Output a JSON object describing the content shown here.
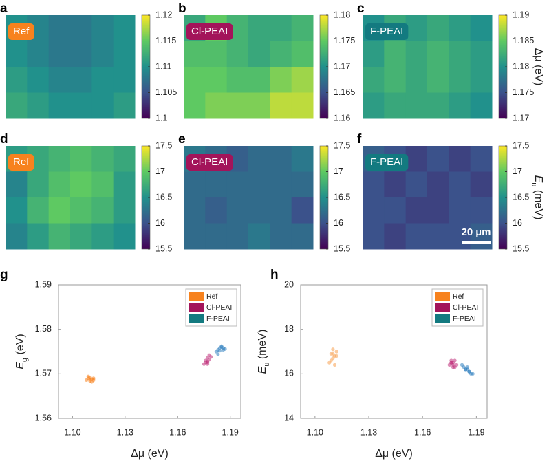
{
  "chart_data": [
    {
      "type": "heatmap",
      "panel": "a",
      "label": "Ref",
      "label_color": "#f7821e",
      "zlim": [
        1.1,
        1.12
      ],
      "zticks": [
        1.1,
        1.105,
        1.11,
        1.115,
        1.12
      ],
      "values": [
        [
          1.11,
          1.109,
          1.108,
          1.108,
          1.109,
          1.11
        ],
        [
          1.11,
          1.109,
          1.108,
          1.108,
          1.109,
          1.11
        ],
        [
          1.111,
          1.11,
          1.109,
          1.109,
          1.11,
          1.11
        ],
        [
          1.112,
          1.111,
          1.11,
          1.11,
          1.11,
          1.111
        ]
      ]
    },
    {
      "type": "heatmap",
      "panel": "b",
      "label": "Cl-PEAI",
      "label_color": "#a3145a",
      "zlim": [
        1.16,
        1.18
      ],
      "zticks": [
        1.16,
        1.165,
        1.17,
        1.175,
        1.18
      ],
      "values": [
        [
          1.172,
          1.175,
          1.173,
          1.172,
          1.172,
          1.173
        ],
        [
          1.174,
          1.174,
          1.173,
          1.172,
          1.173,
          1.174
        ],
        [
          1.175,
          1.175,
          1.174,
          1.174,
          1.176,
          1.177
        ],
        [
          1.175,
          1.176,
          1.176,
          1.176,
          1.178,
          1.178
        ]
      ]
    },
    {
      "type": "heatmap",
      "panel": "c",
      "label": "F-PEAI",
      "label_color": "#137a80",
      "zlim": [
        1.17,
        1.19
      ],
      "zticks": [
        1.17,
        1.175,
        1.18,
        1.185,
        1.19
      ],
      "colorbar_label": "Δμ (eV)",
      "values": [
        [
          1.18,
          1.182,
          1.181,
          1.182,
          1.181,
          1.18
        ],
        [
          1.181,
          1.183,
          1.182,
          1.183,
          1.182,
          1.181
        ],
        [
          1.182,
          1.183,
          1.182,
          1.183,
          1.182,
          1.181
        ],
        [
          1.181,
          1.182,
          1.182,
          1.182,
          1.181,
          1.18
        ]
      ]
    },
    {
      "type": "heatmap",
      "panel": "d",
      "label": "Ref",
      "label_color": "#f7821e",
      "zlim": [
        15.5,
        17.5
      ],
      "zticks": [
        15.5,
        16,
        16.5,
        17,
        17.5
      ],
      "values": [
        [
          16.6,
          16.7,
          16.8,
          16.9,
          16.8,
          16.7
        ],
        [
          16.4,
          16.7,
          16.9,
          17.0,
          16.9,
          16.6
        ],
        [
          16.5,
          16.8,
          17.0,
          16.9,
          16.8,
          16.6
        ],
        [
          16.4,
          16.6,
          16.8,
          16.7,
          16.6,
          16.5
        ]
      ]
    },
    {
      "type": "heatmap",
      "panel": "e",
      "label": "Cl-PEAI",
      "label_color": "#a3145a",
      "zlim": [
        15.5,
        17.5
      ],
      "zticks": [
        15.5,
        16,
        16.5,
        17,
        17.5
      ],
      "values": [
        [
          16.3,
          16.2,
          16.1,
          16.2,
          16.2,
          16.3
        ],
        [
          16.2,
          16.2,
          16.2,
          16.2,
          16.2,
          16.2
        ],
        [
          16.2,
          16.1,
          16.2,
          16.2,
          16.2,
          16.0
        ],
        [
          16.2,
          16.2,
          16.2,
          16.3,
          16.2,
          16.2
        ]
      ]
    },
    {
      "type": "heatmap",
      "panel": "f",
      "label": "F-PEAI",
      "label_color": "#137a80",
      "zlim": [
        15.5,
        17.5
      ],
      "zticks": [
        15.5,
        16,
        16.5,
        17,
        17.5
      ],
      "colorbar_label": {
        "main": "E",
        "sub": "u",
        "rest": " (meV)"
      },
      "scale_bar": "20 µm",
      "values": [
        [
          16.1,
          16.0,
          15.9,
          16.0,
          15.9,
          16.0
        ],
        [
          16.0,
          15.9,
          16.0,
          15.9,
          16.0,
          15.9
        ],
        [
          16.0,
          16.0,
          15.9,
          15.9,
          16.0,
          16.0
        ],
        [
          16.0,
          15.9,
          16.0,
          16.0,
          16.0,
          16.1
        ]
      ]
    },
    {
      "type": "scatter",
      "panel": "g",
      "xlabel": "Δμ (eV)",
      "ylabel": {
        "main": "E",
        "sub": "g",
        "rest": " (eV)"
      },
      "xlim": [
        1.092,
        1.196
      ],
      "xticks": [
        {
          "value": 1.1,
          "label": "1.10"
        },
        {
          "value": 1.13,
          "label": "1.13"
        },
        {
          "value": 1.16,
          "label": "1.16"
        },
        {
          "value": 1.19,
          "label": "1.19"
        }
      ],
      "ylim": [
        1.56,
        1.59
      ],
      "yticks": [
        1.56,
        1.57,
        1.58,
        1.59
      ],
      "legend": "upper right",
      "series": [
        {
          "name": "Ref",
          "color": "#f7821e",
          "marker_color": "#f7821e",
          "x": [
            1.108,
            1.109,
            1.11,
            1.11,
            1.111,
            1.111,
            1.112,
            1.109,
            1.11,
            1.112
          ],
          "y": [
            1.5686,
            1.569,
            1.5684,
            1.5692,
            1.5688,
            1.5682,
            1.569,
            1.5694,
            1.5688,
            1.5686
          ]
        },
        {
          "name": "Cl-PEAI",
          "color": "#a3145a",
          "marker_color": "#c0307a",
          "x": [
            1.175,
            1.176,
            1.177,
            1.177,
            1.178,
            1.176,
            1.177,
            1.179,
            1.178,
            1.177
          ],
          "y": [
            1.5722,
            1.5726,
            1.5728,
            1.5722,
            1.5732,
            1.573,
            1.5736,
            1.5738,
            1.5742,
            1.5726
          ]
        },
        {
          "name": "F-PEAI",
          "color": "#137a80",
          "marker_color": "#2f7fc0",
          "x": [
            1.182,
            1.183,
            1.184,
            1.185,
            1.186,
            1.187,
            1.185,
            1.184,
            1.186,
            1.183
          ],
          "y": [
            1.575,
            1.5754,
            1.5758,
            1.576,
            1.5758,
            1.5756,
            1.5762,
            1.5752,
            1.5754,
            1.5744
          ]
        }
      ]
    },
    {
      "type": "scatter",
      "panel": "h",
      "xlabel": "Δμ (eV)",
      "ylabel": {
        "main": "E",
        "sub": "u",
        "rest": " (meV)"
      },
      "xlim": [
        1.092,
        1.196
      ],
      "xticks": [
        {
          "value": 1.1,
          "label": "1.10"
        },
        {
          "value": 1.13,
          "label": "1.13"
        },
        {
          "value": 1.16,
          "label": "1.16"
        },
        {
          "value": 1.19,
          "label": "1.19"
        }
      ],
      "ylim": [
        14,
        20
      ],
      "yticks": [
        14,
        16,
        18,
        20
      ],
      "legend": "upper right",
      "series": [
        {
          "name": "Ref",
          "color": "#f7821e",
          "marker_color": "#f7a050",
          "x": [
            1.108,
            1.109,
            1.11,
            1.11,
            1.111,
            1.111,
            1.112,
            1.109,
            1.11,
            1.112
          ],
          "y": [
            16.5,
            16.9,
            17.1,
            16.7,
            16.8,
            16.4,
            17.0,
            16.6,
            16.9,
            16.8
          ]
        },
        {
          "name": "Cl-PEAI",
          "color": "#a3145a",
          "marker_color": "#c0307a",
          "x": [
            1.175,
            1.176,
            1.177,
            1.178,
            1.177,
            1.176,
            1.178,
            1.179,
            1.177,
            1.176
          ],
          "y": [
            16.4,
            16.6,
            16.5,
            16.3,
            16.4,
            16.5,
            16.6,
            16.4,
            16.3,
            16.5
          ]
        },
        {
          "name": "F-PEAI",
          "color": "#137a80",
          "marker_color": "#2f7fc0",
          "x": [
            1.182,
            1.183,
            1.184,
            1.185,
            1.186,
            1.187,
            1.185,
            1.184,
            1.186,
            1.188
          ],
          "y": [
            16.4,
            16.3,
            16.2,
            16.2,
            16.1,
            16.0,
            16.3,
            16.2,
            16.1,
            16.0
          ]
        }
      ]
    }
  ]
}
